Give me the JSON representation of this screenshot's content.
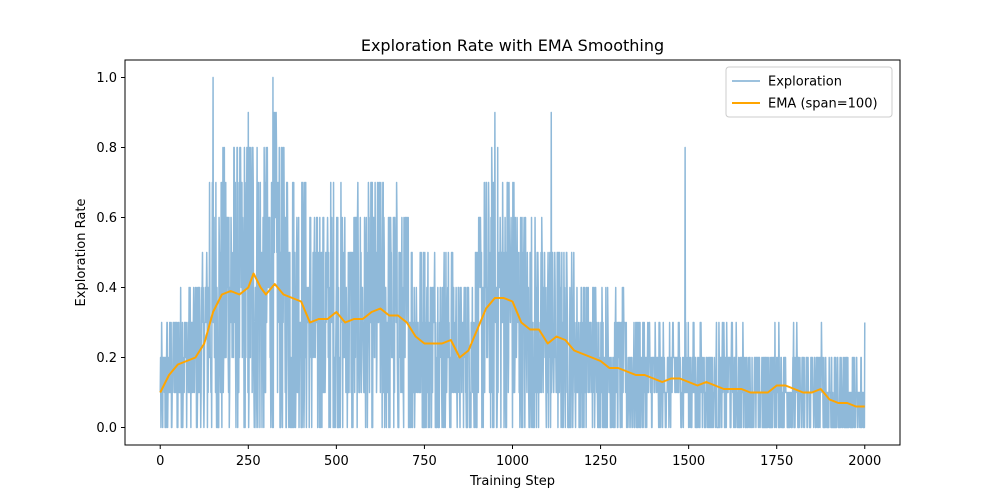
{
  "chart_data": {
    "type": "line",
    "title": "Exploration Rate with EMA Smoothing",
    "xlabel": "Training Step",
    "ylabel": "Exploration Rate",
    "xlim": [
      -100,
      2100
    ],
    "ylim": [
      -0.05,
      1.05
    ],
    "x_ticks": [
      0,
      250,
      500,
      750,
      1000,
      1250,
      1500,
      1750,
      2000
    ],
    "x_tick_labels": [
      "0",
      "250",
      "500",
      "750",
      "1000",
      "1250",
      "1500",
      "1750",
      "2000"
    ],
    "y_ticks": [
      0.0,
      0.2,
      0.4,
      0.6,
      0.8,
      1.0
    ],
    "y_tick_labels": [
      "0.0",
      "0.2",
      "0.4",
      "0.6",
      "0.8",
      "1.0"
    ],
    "grid": false,
    "legend_position": "top-right",
    "series": [
      {
        "name": "Exploration",
        "color": "#8fb9d9",
        "style": "noisy raw signal (0.0–1.0 in steps of 0.1), step 0–2000",
        "x": [
          0,
          140,
          150,
          250,
          320,
          330,
          950,
          1110,
          1490,
          2000
        ],
        "values": [
          0.1,
          0.7,
          1.0,
          0.9,
          1.0,
          0.8,
          0.9,
          0.9,
          0.8,
          0.3
        ]
      },
      {
        "name": "EMA (span=100)",
        "color": "#ffa500",
        "x": [
          0,
          25,
          50,
          75,
          100,
          125,
          150,
          175,
          200,
          225,
          250,
          265,
          285,
          300,
          325,
          350,
          375,
          400,
          425,
          450,
          475,
          500,
          525,
          550,
          575,
          600,
          625,
          650,
          675,
          700,
          725,
          750,
          775,
          800,
          825,
          850,
          875,
          900,
          925,
          950,
          975,
          1000,
          1025,
          1050,
          1075,
          1100,
          1125,
          1150,
          1175,
          1200,
          1225,
          1250,
          1275,
          1300,
          1325,
          1350,
          1375,
          1400,
          1425,
          1450,
          1475,
          1500,
          1525,
          1550,
          1575,
          1600,
          1625,
          1650,
          1675,
          1700,
          1725,
          1750,
          1775,
          1800,
          1825,
          1850,
          1875,
          1900,
          1925,
          1950,
          1975,
          2000
        ],
        "values": [
          0.1,
          0.15,
          0.18,
          0.19,
          0.2,
          0.24,
          0.33,
          0.38,
          0.39,
          0.38,
          0.4,
          0.44,
          0.4,
          0.38,
          0.41,
          0.38,
          0.37,
          0.36,
          0.3,
          0.31,
          0.31,
          0.33,
          0.3,
          0.31,
          0.31,
          0.33,
          0.34,
          0.32,
          0.32,
          0.3,
          0.26,
          0.24,
          0.24,
          0.24,
          0.25,
          0.2,
          0.22,
          0.28,
          0.34,
          0.37,
          0.37,
          0.36,
          0.3,
          0.28,
          0.28,
          0.24,
          0.26,
          0.25,
          0.22,
          0.21,
          0.2,
          0.19,
          0.17,
          0.17,
          0.16,
          0.15,
          0.15,
          0.14,
          0.13,
          0.14,
          0.14,
          0.13,
          0.12,
          0.13,
          0.12,
          0.11,
          0.11,
          0.11,
          0.1,
          0.1,
          0.1,
          0.12,
          0.12,
          0.11,
          0.1,
          0.1,
          0.11,
          0.08,
          0.07,
          0.07,
          0.06,
          0.06
        ]
      }
    ]
  }
}
